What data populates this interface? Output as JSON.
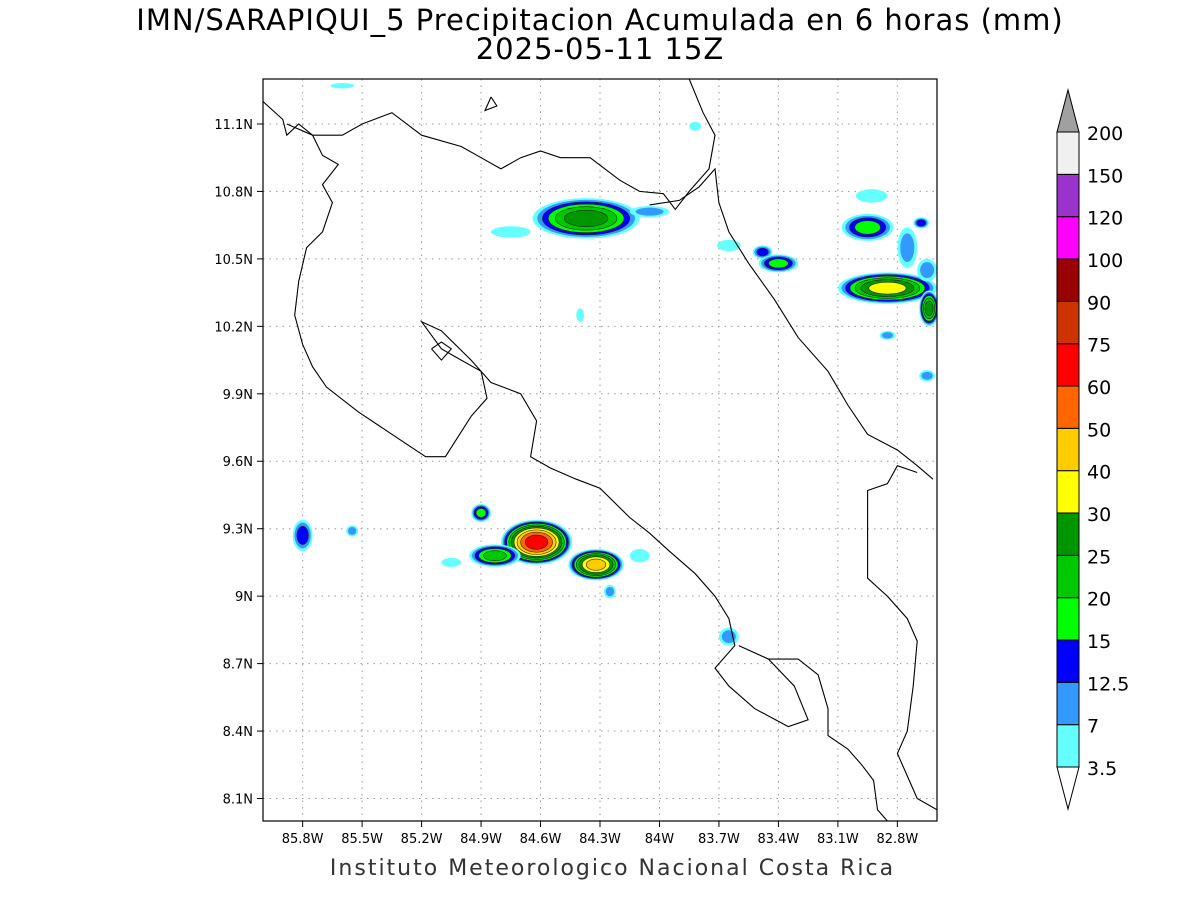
{
  "title_line1": "IMN/SARAPIQUI_5 Precipitacion Acumulada en 6 horas (mm)",
  "title_line2": "2025-05-11 15Z",
  "credit": "Instituto Meteorologico Nacional Costa Rica",
  "map": {
    "lon_range": [
      -86.0,
      -82.6
    ],
    "lat_range": [
      8.0,
      11.3
    ],
    "lon_ticks": [
      {
        "value": -85.8,
        "label": "85.8W"
      },
      {
        "value": -85.5,
        "label": "85.5W"
      },
      {
        "value": -85.2,
        "label": "85.2W"
      },
      {
        "value": -84.9,
        "label": "84.9W"
      },
      {
        "value": -84.6,
        "label": "84.6W"
      },
      {
        "value": -84.3,
        "label": "84.3W"
      },
      {
        "value": -84.0,
        "label": "84W"
      },
      {
        "value": -83.7,
        "label": "83.7W"
      },
      {
        "value": -83.4,
        "label": "83.4W"
      },
      {
        "value": -83.1,
        "label": "83.1W"
      },
      {
        "value": -82.8,
        "label": "82.8W"
      }
    ],
    "lat_ticks": [
      {
        "value": 11.1,
        "label": "11.1N"
      },
      {
        "value": 10.8,
        "label": "10.8N"
      },
      {
        "value": 10.5,
        "label": "10.5N"
      },
      {
        "value": 10.2,
        "label": "10.2N"
      },
      {
        "value": 9.9,
        "label": "9.9N"
      },
      {
        "value": 9.6,
        "label": "9.6N"
      },
      {
        "value": 9.3,
        "label": "9.3N"
      },
      {
        "value": 9.0,
        "label": "9N"
      },
      {
        "value": 8.7,
        "label": "8.7N"
      },
      {
        "value": 8.4,
        "label": "8.4N"
      },
      {
        "value": 8.1,
        "label": "8.1N"
      }
    ],
    "gridlines": true,
    "coastline_color": "#000000"
  },
  "legend": {
    "placement": "right",
    "arrows": true,
    "levels": [
      {
        "label": "3.5",
        "color": "#66FFFF"
      },
      {
        "label": "7",
        "color": "#3399FF"
      },
      {
        "label": "12.5",
        "color": "#0000FF"
      },
      {
        "label": "15",
        "color": "#00FF00"
      },
      {
        "label": "20",
        "color": "#00C800"
      },
      {
        "label": "25",
        "color": "#009600"
      },
      {
        "label": "30",
        "color": "#FFFF00"
      },
      {
        "label": "40",
        "color": "#FFCC00"
      },
      {
        "label": "50",
        "color": "#FF6600"
      },
      {
        "label": "60",
        "color": "#FF0000"
      },
      {
        "label": "75",
        "color": "#CC3300"
      },
      {
        "label": "90",
        "color": "#990000"
      },
      {
        "label": "100",
        "color": "#FF00FF"
      },
      {
        "label": "120",
        "color": "#9933CC"
      },
      {
        "label": "150",
        "color": "#F0F0F0"
      },
      {
        "label": "200",
        "color": "#A0A0A0"
      }
    ]
  },
  "precip_cells": [
    {
      "lon": -84.37,
      "lat": 10.68,
      "rx": 0.27,
      "ry": 0.09,
      "peak": 25
    },
    {
      "lon": -84.05,
      "lat": 10.71,
      "rx": 0.1,
      "ry": 0.025,
      "peak": 7
    },
    {
      "lon": -84.75,
      "lat": 10.62,
      "rx": 0.1,
      "ry": 0.025,
      "peak": 3.5
    },
    {
      "lon": -84.4,
      "lat": 10.25,
      "rx": 0.02,
      "ry": 0.03,
      "peak": 3.5
    },
    {
      "lon": -83.48,
      "lat": 10.53,
      "rx": 0.05,
      "ry": 0.03,
      "peak": 12.5
    },
    {
      "lon": -83.4,
      "lat": 10.48,
      "rx": 0.1,
      "ry": 0.04,
      "peak": 15
    },
    {
      "lon": -83.65,
      "lat": 10.56,
      "rx": 0.06,
      "ry": 0.025,
      "peak": 3.5
    },
    {
      "lon": -82.95,
      "lat": 10.64,
      "rx": 0.13,
      "ry": 0.06,
      "peak": 15
    },
    {
      "lon": -82.85,
      "lat": 10.37,
      "rx": 0.25,
      "ry": 0.07,
      "peak": 30
    },
    {
      "lon": -82.75,
      "lat": 10.55,
      "rx": 0.05,
      "ry": 0.09,
      "peak": 7
    },
    {
      "lon": -82.64,
      "lat": 10.28,
      "rx": 0.05,
      "ry": 0.08,
      "peak": 25
    },
    {
      "lon": -82.65,
      "lat": 10.45,
      "rx": 0.05,
      "ry": 0.05,
      "peak": 7
    },
    {
      "lon": -82.68,
      "lat": 10.66,
      "rx": 0.04,
      "ry": 0.025,
      "peak": 12.5
    },
    {
      "lon": -82.85,
      "lat": 10.16,
      "rx": 0.04,
      "ry": 0.02,
      "peak": 7
    },
    {
      "lon": -82.65,
      "lat": 9.98,
      "rx": 0.04,
      "ry": 0.025,
      "peak": 7
    },
    {
      "lon": -82.93,
      "lat": 10.78,
      "rx": 0.08,
      "ry": 0.03,
      "peak": 3.5
    },
    {
      "lon": -85.8,
      "lat": 9.27,
      "rx": 0.05,
      "ry": 0.07,
      "peak": 12.5
    },
    {
      "lon": -85.55,
      "lat": 9.29,
      "rx": 0.03,
      "ry": 0.025,
      "peak": 7
    },
    {
      "lon": -84.62,
      "lat": 9.24,
      "rx": 0.18,
      "ry": 0.1,
      "peak": 60
    },
    {
      "lon": -84.83,
      "lat": 9.18,
      "rx": 0.13,
      "ry": 0.05,
      "peak": 20
    },
    {
      "lon": -84.32,
      "lat": 9.14,
      "rx": 0.14,
      "ry": 0.07,
      "peak": 40
    },
    {
      "lon": -84.9,
      "lat": 9.37,
      "rx": 0.05,
      "ry": 0.04,
      "peak": 15
    },
    {
      "lon": -85.05,
      "lat": 9.15,
      "rx": 0.05,
      "ry": 0.02,
      "peak": 3.5
    },
    {
      "lon": -84.25,
      "lat": 9.02,
      "rx": 0.03,
      "ry": 0.03,
      "peak": 7
    },
    {
      "lon": -84.1,
      "lat": 9.18,
      "rx": 0.05,
      "ry": 0.03,
      "peak": 3.5
    },
    {
      "lon": -83.65,
      "lat": 8.82,
      "rx": 0.05,
      "ry": 0.04,
      "peak": 7
    },
    {
      "lon": -85.6,
      "lat": 11.27,
      "rx": 0.06,
      "ry": 0.012,
      "peak": 3.5
    },
    {
      "lon": -83.82,
      "lat": 11.09,
      "rx": 0.03,
      "ry": 0.02,
      "peak": 3.5
    }
  ],
  "coastlines": [
    [
      [
        -86.0,
        11.2
      ],
      [
        -85.9,
        11.12
      ],
      [
        -85.88,
        11.05
      ],
      [
        -85.82,
        11.1
      ],
      [
        -85.75,
        11.05
      ],
      [
        -85.6,
        11.05
      ],
      [
        -85.5,
        11.1
      ],
      [
        -85.35,
        11.15
      ],
      [
        -85.2,
        11.05
      ],
      [
        -85.0,
        11.0
      ],
      [
        -84.9,
        10.95
      ],
      [
        -84.8,
        10.9
      ],
      [
        -84.7,
        10.95
      ],
      [
        -84.6,
        10.98
      ],
      [
        -84.5,
        10.95
      ],
      [
        -84.35,
        10.95
      ],
      [
        -84.2,
        10.85
      ],
      [
        -84.1,
        10.8
      ],
      [
        -83.98,
        10.79
      ],
      [
        -83.92,
        10.72
      ],
      [
        -83.85,
        10.8
      ],
      [
        -83.75,
        10.9
      ],
      [
        -83.72,
        11.05
      ],
      [
        -83.78,
        11.15
      ],
      [
        -83.85,
        11.3
      ]
    ],
    [
      [
        -84.05,
        10.74
      ],
      [
        -83.9,
        10.76
      ],
      [
        -83.8,
        10.82
      ],
      [
        -83.72,
        10.9
      ],
      [
        -83.7,
        10.75
      ],
      [
        -83.65,
        10.62
      ],
      [
        -83.55,
        10.48
      ],
      [
        -83.42,
        10.32
      ],
      [
        -83.3,
        10.15
      ],
      [
        -83.15,
        10.0
      ],
      [
        -83.05,
        9.85
      ],
      [
        -82.95,
        9.72
      ],
      [
        -82.8,
        9.65
      ],
      [
        -82.7,
        9.58
      ],
      [
        -82.62,
        9.52
      ]
    ],
    [
      [
        -85.88,
        11.1
      ],
      [
        -85.75,
        11.05
      ],
      [
        -85.7,
        10.96
      ],
      [
        -85.62,
        10.92
      ],
      [
        -85.7,
        10.83
      ],
      [
        -85.65,
        10.75
      ],
      [
        -85.7,
        10.62
      ],
      [
        -85.78,
        10.55
      ],
      [
        -85.82,
        10.4
      ],
      [
        -85.84,
        10.25
      ],
      [
        -85.8,
        10.12
      ],
      [
        -85.75,
        10.02
      ],
      [
        -85.68,
        9.93
      ],
      [
        -85.52,
        9.82
      ],
      [
        -85.35,
        9.72
      ],
      [
        -85.18,
        9.62
      ],
      [
        -85.08,
        9.62
      ],
      [
        -84.95,
        9.8
      ],
      [
        -84.87,
        9.88
      ],
      [
        -84.9,
        10.0
      ],
      [
        -85.0,
        10.05
      ],
      [
        -85.1,
        10.1
      ],
      [
        -85.2,
        10.22
      ],
      [
        -85.1,
        10.18
      ],
      [
        -84.95,
        10.05
      ],
      [
        -84.85,
        9.95
      ],
      [
        -84.7,
        9.9
      ],
      [
        -84.62,
        9.78
      ],
      [
        -84.65,
        9.62
      ],
      [
        -84.55,
        9.57
      ],
      [
        -84.42,
        9.52
      ],
      [
        -84.3,
        9.48
      ],
      [
        -84.15,
        9.35
      ],
      [
        -84.05,
        9.28
      ],
      [
        -83.95,
        9.2
      ],
      [
        -83.82,
        9.1
      ],
      [
        -83.72,
        9.0
      ],
      [
        -83.65,
        8.9
      ],
      [
        -83.62,
        8.78
      ],
      [
        -83.72,
        8.68
      ],
      [
        -83.65,
        8.6
      ],
      [
        -83.52,
        8.5
      ],
      [
        -83.35,
        8.42
      ],
      [
        -83.25,
        8.45
      ],
      [
        -83.32,
        8.6
      ],
      [
        -83.45,
        8.72
      ],
      [
        -83.6,
        8.78
      ]
    ],
    [
      [
        -83.45,
        8.72
      ],
      [
        -83.3,
        8.72
      ],
      [
        -83.2,
        8.65
      ],
      [
        -83.15,
        8.5
      ],
      [
        -83.15,
        8.38
      ],
      [
        -83.05,
        8.32
      ],
      [
        -82.98,
        8.25
      ],
      [
        -82.92,
        8.18
      ],
      [
        -82.9,
        8.05
      ],
      [
        -82.85,
        8.0
      ]
    ],
    [
      [
        -82.7,
        9.55
      ],
      [
        -82.8,
        9.58
      ],
      [
        -82.85,
        9.5
      ],
      [
        -82.95,
        9.47
      ],
      [
        -82.95,
        9.3
      ],
      [
        -82.95,
        9.08
      ],
      [
        -82.85,
        9.0
      ],
      [
        -82.75,
        8.9
      ],
      [
        -82.7,
        8.8
      ],
      [
        -82.72,
        8.6
      ],
      [
        -82.75,
        8.4
      ],
      [
        -82.8,
        8.3
      ],
      [
        -82.75,
        8.2
      ],
      [
        -82.7,
        8.1
      ],
      [
        -82.6,
        8.05
      ]
    ],
    [
      [
        -85.15,
        10.1
      ],
      [
        -85.1,
        10.05
      ],
      [
        -85.05,
        10.1
      ],
      [
        -85.1,
        10.13
      ],
      [
        -85.15,
        10.1
      ]
    ],
    [
      [
        -84.85,
        11.22
      ],
      [
        -84.82,
        11.18
      ],
      [
        -84.88,
        11.16
      ],
      [
        -84.85,
        11.22
      ]
    ]
  ]
}
